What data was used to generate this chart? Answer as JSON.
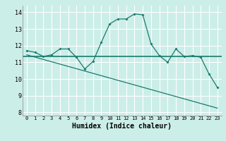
{
  "xlabel": "Humidex (Indice chaleur)",
  "bg_color": "#cceee8",
  "grid_color": "#ffffff",
  "line_color": "#1a7a6e",
  "xlim": [
    -0.5,
    23.5
  ],
  "ylim": [
    7.8,
    14.4
  ],
  "yticks": [
    8,
    9,
    10,
    11,
    12,
    13,
    14
  ],
  "xticks": [
    0,
    1,
    2,
    3,
    4,
    5,
    6,
    7,
    8,
    9,
    10,
    11,
    12,
    13,
    14,
    15,
    16,
    17,
    18,
    19,
    20,
    21,
    22,
    23
  ],
  "line1_x": [
    0,
    1,
    2,
    3,
    4,
    5,
    6,
    7,
    8,
    9,
    10,
    11,
    12,
    13,
    14,
    15,
    16,
    17,
    18,
    19,
    20,
    21,
    22,
    23
  ],
  "line1_y": [
    11.7,
    11.6,
    11.35,
    11.45,
    11.8,
    11.8,
    11.3,
    10.6,
    11.05,
    12.2,
    13.3,
    13.6,
    13.6,
    13.9,
    13.85,
    12.1,
    11.4,
    11.0,
    11.8,
    11.35,
    11.4,
    11.3,
    10.3,
    9.5
  ],
  "line2_x": [
    0,
    23
  ],
  "line2_y": [
    11.45,
    8.25
  ],
  "hline_y": 11.35
}
